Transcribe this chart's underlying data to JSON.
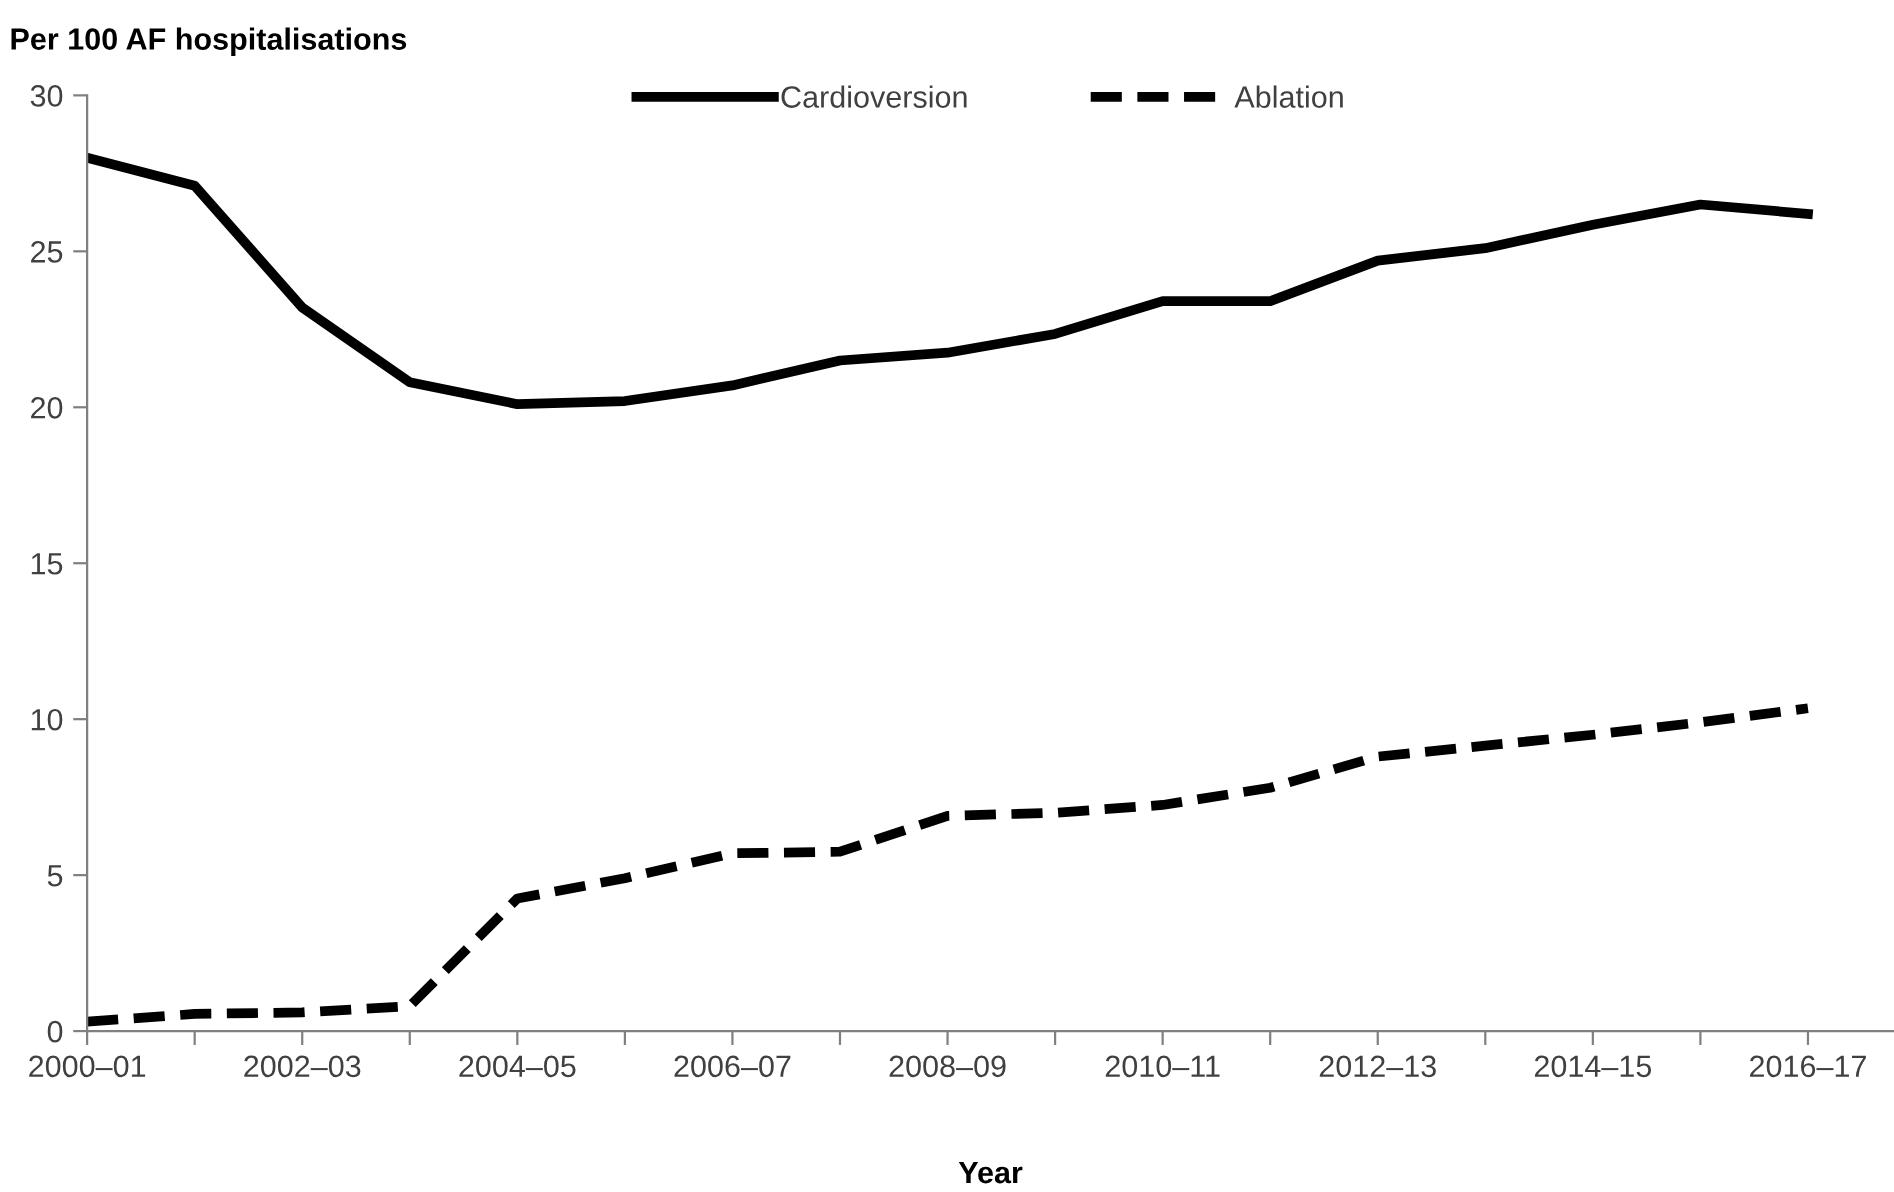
{
  "chart_data": {
    "type": "line",
    "ylabel": "Per 100 AF hospitalisations",
    "xlabel": "Year",
    "categories": [
      "2000–01",
      null,
      "2002–03",
      null,
      "2004–05",
      null,
      "2006–07",
      null,
      "2008–09",
      null,
      "2010–11",
      null,
      "2012–13",
      null,
      "2014–15",
      null,
      "2016–17"
    ],
    "series": [
      {
        "name": "Cardioversion",
        "color": "#000000",
        "line_style": "solid",
        "values": [
          28.0,
          27.1,
          23.2,
          20.8,
          20.1,
          20.2,
          20.7,
          21.5,
          21.75,
          22.35,
          23.4,
          23.4,
          24.7,
          25.1,
          25.85,
          26.5,
          26.2
        ]
      },
      {
        "name": "Ablation",
        "color": "#000000",
        "line_style": "dashed",
        "values": [
          0.3,
          0.55,
          0.6,
          0.8,
          4.25,
          4.9,
          5.7,
          5.75,
          6.9,
          7.0,
          7.25,
          7.8,
          8.8,
          9.15,
          9.5,
          9.9,
          10.35
        ]
      }
    ],
    "ylim": [
      0,
      30
    ],
    "yticks": [
      0,
      5,
      10,
      15,
      20,
      25,
      30
    ],
    "grid": false,
    "legend": "top",
    "marker": "none"
  }
}
